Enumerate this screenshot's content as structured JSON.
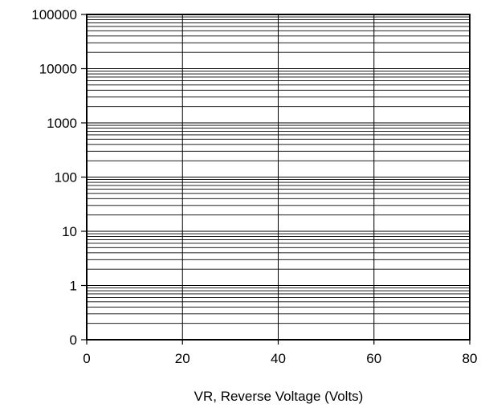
{
  "chart_data": {
    "type": "line",
    "title": "",
    "xlabel": "VR, Reverse Voltage (Volts)",
    "ylabel": "",
    "xlim": [
      0,
      80
    ],
    "ylim": [
      0,
      100000
    ],
    "y_scale": "log",
    "grid": true,
    "x_ticks": [
      0,
      20,
      40,
      60,
      80
    ],
    "x_tick_labels": [
      "0",
      "20",
      "40",
      "60",
      "80"
    ],
    "y_tick_labels": [
      "0",
      "1",
      "10",
      "100",
      "1000",
      "10000",
      "100000"
    ],
    "series": [],
    "colors": {
      "axis": "#000000",
      "grid": "#000000",
      "background": "#ffffff"
    }
  }
}
